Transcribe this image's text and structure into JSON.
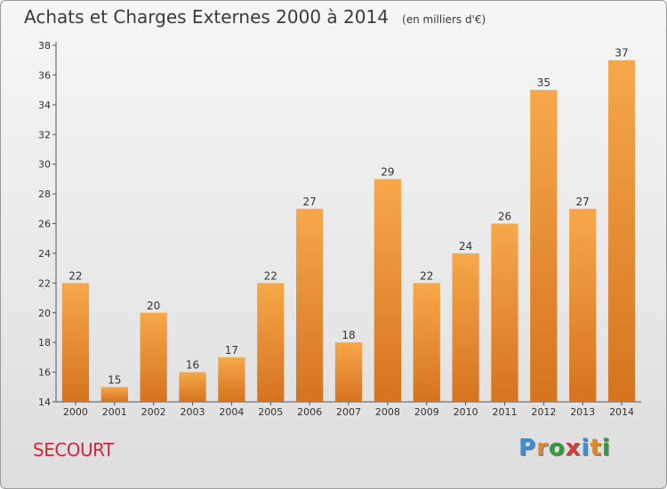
{
  "title": "Achats et Charges Externes 2000 à 2014",
  "unit": "(en milliers d'€)",
  "place": "SECOURT",
  "logo": {
    "text": "Proxiti",
    "colors": [
      "#3b8fd6",
      "#e08a2a",
      "#2e9e3a",
      "#d93a3a",
      "#3b8fd6",
      "#e08a2a",
      "#2e9e3a"
    ]
  },
  "colors": {
    "bar_light": "#f7a84a",
    "bar_dark": "#d5731f",
    "title": "#3a3a3a",
    "place": "#d0253d",
    "axis": "#555555"
  },
  "chart_data": {
    "type": "bar",
    "title": "Achats et Charges Externes 2000 à 2014",
    "xlabel": "",
    "ylabel": "",
    "categories": [
      "2000",
      "2001",
      "2002",
      "2003",
      "2004",
      "2005",
      "2006",
      "2007",
      "2008",
      "2009",
      "2010",
      "2011",
      "2012",
      "2013",
      "2014"
    ],
    "values": [
      22,
      15,
      20,
      16,
      17,
      22,
      27,
      18,
      29,
      22,
      24,
      26,
      35,
      27,
      37
    ],
    "ylim": [
      14,
      38
    ],
    "yticks": [
      14,
      16,
      18,
      20,
      22,
      24,
      26,
      28,
      30,
      32,
      34,
      36,
      38
    ],
    "grid": false,
    "data_labels": true
  }
}
